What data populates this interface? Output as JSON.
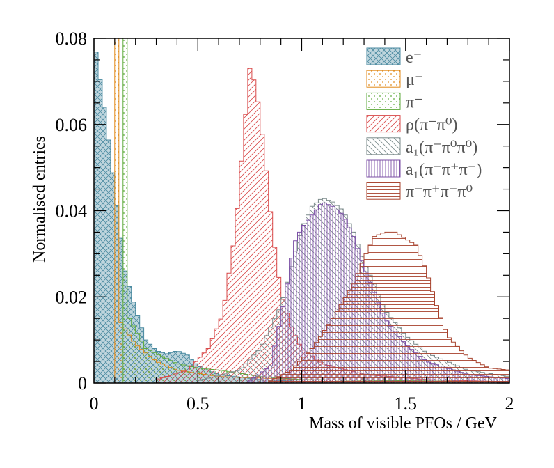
{
  "chart_data": {
    "type": "histogram",
    "xlabel": "Mass of visible PFOs / GeV",
    "ylabel": "Normalised entries",
    "xlim": [
      0,
      2
    ],
    "ylim": [
      0,
      0.08
    ],
    "x_ticks": [
      "0",
      "0.5",
      "1",
      "1.5",
      "2"
    ],
    "y_ticks": [
      "0",
      "0.02",
      "0.04",
      "0.06",
      "0.08"
    ],
    "grid": false,
    "legend_position": "top-right",
    "bin_width": 0.02,
    "series": [
      {
        "label": "e⁻",
        "color": "#4a8aa0",
        "fill": "crosshatch",
        "peaks": [
          [
            0.0,
            0.08
          ],
          [
            0.05,
            0.064
          ],
          [
            0.1,
            0.045
          ],
          [
            0.15,
            0.026
          ],
          [
            0.2,
            0.017
          ],
          [
            0.25,
            0.01
          ],
          [
            0.3,
            0.0075
          ],
          [
            0.35,
            0.0068
          ],
          [
            0.4,
            0.0075
          ],
          [
            0.45,
            0.0065
          ],
          [
            0.5,
            0.004
          ],
          [
            0.6,
            0.002
          ],
          [
            0.8,
            0.0008
          ],
          [
            1.0,
            0.0004
          ]
        ]
      },
      {
        "label": "μ⁻",
        "color": "#e08a1a",
        "fill": "dots",
        "peaks": [
          [
            0.1,
            0.0
          ],
          [
            0.105,
            0.08
          ],
          [
            0.12,
            0.08
          ],
          [
            0.13,
            0.014
          ],
          [
            0.2,
            0.009
          ],
          [
            0.3,
            0.005
          ],
          [
            0.4,
            0.003
          ],
          [
            0.6,
            0.0015
          ],
          [
            1.0,
            0.0008
          ],
          [
            2.0,
            0.0003
          ]
        ]
      },
      {
        "label": "π⁻",
        "color": "#5faa3c",
        "fill": "dots",
        "peaks": [
          [
            0.13,
            0.0
          ],
          [
            0.135,
            0.08
          ],
          [
            0.16,
            0.08
          ],
          [
            0.17,
            0.015
          ],
          [
            0.25,
            0.008
          ],
          [
            0.4,
            0.0045
          ],
          [
            0.5,
            0.0035
          ],
          [
            0.6,
            0.003
          ],
          [
            0.8,
            0.0015
          ],
          [
            1.0,
            0.0008
          ],
          [
            2.0,
            0.0003
          ]
        ]
      },
      {
        "label": "ρ(π⁻π⁰)",
        "color": "#d94a4a",
        "fill": "diagonal",
        "peaks": [
          [
            0.3,
            0.0008
          ],
          [
            0.45,
            0.003
          ],
          [
            0.55,
            0.008
          ],
          [
            0.62,
            0.016
          ],
          [
            0.68,
            0.035
          ],
          [
            0.72,
            0.057
          ],
          [
            0.75,
            0.073
          ],
          [
            0.78,
            0.069
          ],
          [
            0.82,
            0.054
          ],
          [
            0.86,
            0.035
          ],
          [
            0.9,
            0.021
          ],
          [
            0.95,
            0.013
          ],
          [
            1.0,
            0.008
          ],
          [
            1.1,
            0.0045
          ],
          [
            1.3,
            0.002
          ],
          [
            1.6,
            0.0008
          ],
          [
            2.0,
            0.0003
          ]
        ]
      },
      {
        "label": "a₁(π⁻π⁰π⁰)",
        "color": "#7a8a8a",
        "fill": "back-diagonal",
        "peaks": [
          [
            0.5,
            0.0005
          ],
          [
            0.7,
            0.003
          ],
          [
            0.8,
            0.008
          ],
          [
            0.9,
            0.018
          ],
          [
            0.95,
            0.027
          ],
          [
            1.0,
            0.036
          ],
          [
            1.05,
            0.041
          ],
          [
            1.1,
            0.043
          ],
          [
            1.15,
            0.042
          ],
          [
            1.2,
            0.04
          ],
          [
            1.25,
            0.035
          ],
          [
            1.3,
            0.028
          ],
          [
            1.35,
            0.023
          ],
          [
            1.4,
            0.017
          ],
          [
            1.5,
            0.011
          ],
          [
            1.6,
            0.007
          ],
          [
            1.8,
            0.003
          ],
          [
            2.0,
            0.0015
          ]
        ]
      },
      {
        "label": "a₁(π⁻π⁺π⁻)",
        "color": "#7b4fa6",
        "fill": "vertical",
        "peaks": [
          [
            0.75,
            0.0005
          ],
          [
            0.85,
            0.004
          ],
          [
            0.92,
            0.02
          ],
          [
            0.96,
            0.032
          ],
          [
            1.0,
            0.036
          ],
          [
            1.05,
            0.039
          ],
          [
            1.1,
            0.042
          ],
          [
            1.15,
            0.041
          ],
          [
            1.2,
            0.039
          ],
          [
            1.25,
            0.034
          ],
          [
            1.3,
            0.027
          ],
          [
            1.35,
            0.021
          ],
          [
            1.4,
            0.015
          ],
          [
            1.5,
            0.009
          ],
          [
            1.6,
            0.005
          ],
          [
            1.8,
            0.002
          ],
          [
            2.0,
            0.001
          ]
        ]
      },
      {
        "label": "π⁻π⁺π⁻π⁰",
        "color": "#a8432e",
        "fill": "horizontal",
        "peaks": [
          [
            0.85,
            0.0005
          ],
          [
            0.95,
            0.003
          ],
          [
            1.05,
            0.008
          ],
          [
            1.15,
            0.015
          ],
          [
            1.25,
            0.023
          ],
          [
            1.3,
            0.029
          ],
          [
            1.35,
            0.034
          ],
          [
            1.4,
            0.035
          ],
          [
            1.45,
            0.035
          ],
          [
            1.5,
            0.0335
          ],
          [
            1.55,
            0.032
          ],
          [
            1.6,
            0.026
          ],
          [
            1.65,
            0.018
          ],
          [
            1.7,
            0.011
          ],
          [
            1.8,
            0.006
          ],
          [
            1.9,
            0.0035
          ],
          [
            2.0,
            0.003
          ]
        ]
      }
    ]
  }
}
